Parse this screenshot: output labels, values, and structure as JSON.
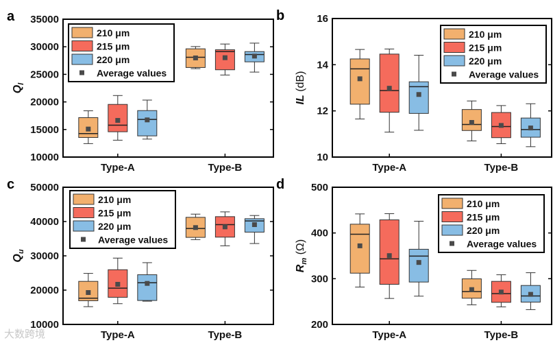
{
  "colors": {
    "s210": "#F2B06E",
    "s215": "#F56B5C",
    "s220": "#88BDE4",
    "mean": "#4A4A4A",
    "median": "#222222",
    "whisker": "#333333"
  },
  "watermark": "大数跨境",
  "chart_data": [
    {
      "panel": "a",
      "type": "box",
      "ylabel": {
        "base": "Q",
        "sub": "l",
        "unit": ""
      },
      "ylim": [
        10000,
        35000
      ],
      "yticks": [
        "10000",
        "15000",
        "20000",
        "25000",
        "30000",
        "35000"
      ],
      "categories": [
        "Type-A",
        "Type-B"
      ],
      "legend": {
        "placement": "top-left",
        "entries": [
          "210 μm",
          "215 μm",
          "220 μm",
          "Average values"
        ]
      },
      "series": [
        {
          "name": "210 μm",
          "color_key": "s210",
          "boxes": [
            {
              "min": 12440,
              "q1": 13550,
              "median": 14260,
              "q3": 17150,
              "max": 18390,
              "mean": 15080
            },
            {
              "min": 26030,
              "q1": 26240,
              "median": 28100,
              "q3": 29630,
              "max": 30040,
              "mean": 27980
            }
          ]
        },
        {
          "name": "215 μm",
          "color_key": "s215",
          "boxes": [
            {
              "min": 13060,
              "q1": 14590,
              "median": 15790,
              "q3": 19550,
              "max": 21160,
              "mean": 16650
            },
            {
              "min": 24880,
              "q1": 25830,
              "median": 29130,
              "q3": 29460,
              "max": 30500,
              "mean": 28020
            }
          ]
        },
        {
          "name": "220 μm",
          "color_key": "s220",
          "boxes": [
            {
              "min": 13260,
              "q1": 13840,
              "median": 16820,
              "q3": 18430,
              "max": 20330,
              "mean": 16740
            },
            {
              "min": 25410,
              "q1": 27270,
              "median": 28600,
              "q3": 29130,
              "max": 30660,
              "mean": 28310
            }
          ]
        }
      ]
    },
    {
      "panel": "b",
      "type": "box",
      "ylabel": {
        "base": "IL",
        "sub": "",
        "unit": " (dB)"
      },
      "ylim": [
        10,
        16
      ],
      "yticks": [
        "10",
        "12",
        "14",
        "16"
      ],
      "categories": [
        "Type-A",
        "Type-B"
      ],
      "legend": {
        "placement": "top-right",
        "entries": [
          "210 μm",
          "215 μm",
          "220 μm",
          "Average values"
        ]
      },
      "series": [
        {
          "name": "210 μm",
          "color_key": "s210",
          "boxes": [
            {
              "min": 11.65,
              "q1": 12.29,
              "median": 13.82,
              "q3": 14.25,
              "max": 14.66,
              "mean": 13.39
            },
            {
              "min": 10.7,
              "q1": 11.15,
              "median": 11.41,
              "q3": 12.06,
              "max": 12.43,
              "mean": 11.5
            }
          ]
        },
        {
          "name": "215 μm",
          "color_key": "s215",
          "boxes": [
            {
              "min": 11.08,
              "q1": 11.94,
              "median": 12.88,
              "q3": 14.46,
              "max": 14.68,
              "mean": 12.98
            },
            {
              "min": 10.58,
              "q1": 10.84,
              "median": 11.32,
              "q3": 11.93,
              "max": 12.23,
              "mean": 11.37
            }
          ]
        },
        {
          "name": "220 μm",
          "color_key": "s220",
          "boxes": [
            {
              "min": 11.16,
              "q1": 11.89,
              "median": 13.05,
              "q3": 13.26,
              "max": 14.41,
              "mean": 12.71
            },
            {
              "min": 10.45,
              "q1": 10.86,
              "median": 11.19,
              "q3": 11.69,
              "max": 12.31,
              "mean": 11.26
            }
          ]
        }
      ]
    },
    {
      "panel": "c",
      "type": "box",
      "ylabel": {
        "base": "Q",
        "sub": "u",
        "unit": ""
      },
      "ylim": [
        10000,
        50000
      ],
      "yticks": [
        "10000",
        "20000",
        "30000",
        "40000",
        "50000"
      ],
      "categories": [
        "Type-A",
        "Type-B"
      ],
      "legend": {
        "placement": "top-left",
        "entries": [
          "210 μm",
          "215 μm",
          "220 μm",
          "Average values"
        ]
      },
      "series": [
        {
          "name": "210 μm",
          "color_key": "s210",
          "boxes": [
            {
              "min": 15180,
              "q1": 16910,
              "median": 17640,
              "q3": 22560,
              "max": 24880,
              "mean": 19300
            },
            {
              "min": 34720,
              "q1": 35380,
              "median": 37970,
              "q3": 41230,
              "max": 42160,
              "mean": 38240
            }
          ]
        },
        {
          "name": "215 μm",
          "color_key": "s215",
          "boxes": [
            {
              "min": 16050,
              "q1": 17910,
              "median": 20570,
              "q3": 25950,
              "max": 29340,
              "mean": 21700
            },
            {
              "min": 32920,
              "q1": 35450,
              "median": 39100,
              "q3": 41430,
              "max": 42820,
              "mean": 38440
            }
          ]
        },
        {
          "name": "220 μm",
          "color_key": "s220",
          "boxes": [
            {
              "min": 16780,
              "q1": 16980,
              "median": 22160,
              "q3": 24490,
              "max": 28010,
              "mean": 21960
            },
            {
              "min": 33590,
              "q1": 36910,
              "median": 40170,
              "q3": 40830,
              "max": 41760,
              "mean": 39100
            }
          ]
        }
      ]
    },
    {
      "panel": "d",
      "type": "box",
      "ylabel": {
        "base": "R",
        "sub": "m",
        "unit": " (Ω)"
      },
      "ylim": [
        200,
        500
      ],
      "yticks": [
        "200",
        "300",
        "400",
        "500"
      ],
      "categories": [
        "Type-A",
        "Type-B"
      ],
      "legend": {
        "placement": "top-right",
        "entries": [
          "210 μm",
          "215 μm",
          "220 μm",
          "Average values"
        ]
      },
      "series": [
        {
          "name": "210 μm",
          "color_key": "s210",
          "boxes": [
            {
              "min": 281.7,
              "q1": 312.1,
              "median": 397.3,
              "q3": 419.2,
              "max": 441.7,
              "mean": 371.9
            },
            {
              "min": 242.9,
              "q1": 257.3,
              "median": 271.8,
              "q3": 299.7,
              "max": 318.1,
              "mean": 276.2
            }
          ]
        },
        {
          "name": "215 μm",
          "color_key": "s215",
          "boxes": [
            {
              "min": 256.8,
              "q1": 287.7,
              "median": 343.5,
              "q3": 428.7,
              "max": 442.2,
              "mean": 350.5
            },
            {
              "min": 238.4,
              "q1": 248.3,
              "median": 267.3,
              "q3": 294.2,
              "max": 308.6,
              "mean": 270.8
            }
          ]
        },
        {
          "name": "220 μm",
          "color_key": "s220",
          "boxes": [
            {
              "min": 261.8,
              "q1": 292.7,
              "median": 349.5,
              "q3": 364.4,
              "max": 425.7,
              "mean": 335.5
            },
            {
              "min": 232.4,
              "q1": 248.8,
              "median": 262.3,
              "q3": 285.2,
              "max": 313.1,
              "mean": 265.8
            }
          ]
        }
      ]
    }
  ]
}
